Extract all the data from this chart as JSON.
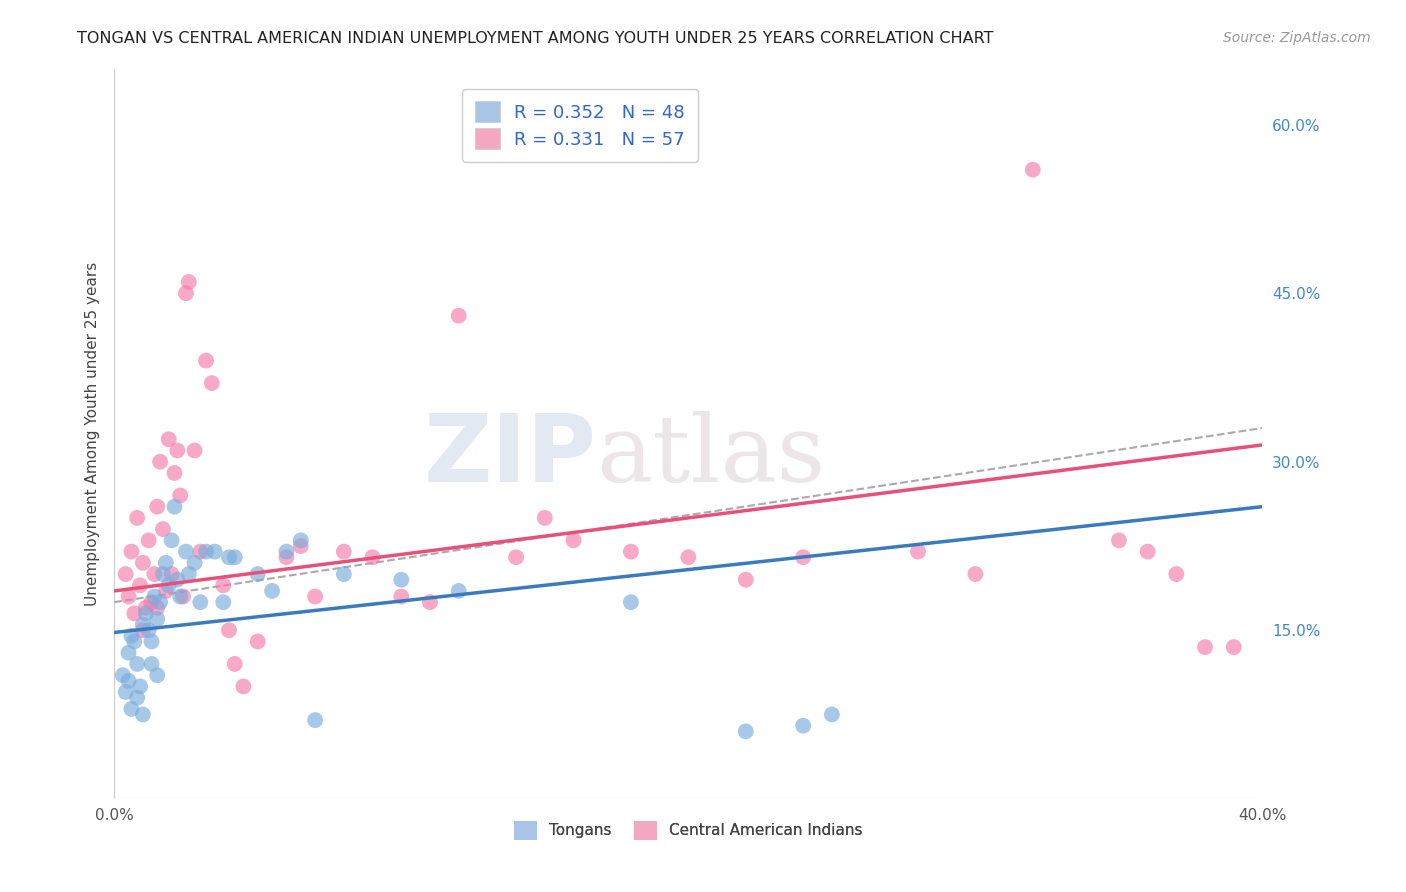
{
  "title": "TONGAN VS CENTRAL AMERICAN INDIAN UNEMPLOYMENT AMONG YOUTH UNDER 25 YEARS CORRELATION CHART",
  "source": "Source: ZipAtlas.com",
  "ylabel": "Unemployment Among Youth under 25 years",
  "xlim": [
    0.0,
    0.4
  ],
  "ylim": [
    0.0,
    0.65
  ],
  "xticks": [
    0.0,
    0.05,
    0.1,
    0.15,
    0.2,
    0.25,
    0.3,
    0.35,
    0.4
  ],
  "xticklabels": [
    "0.0%",
    "",
    "",
    "",
    "",
    "",
    "",
    "",
    "40.0%"
  ],
  "ytick_right": [
    0.0,
    0.15,
    0.3,
    0.45,
    0.6
  ],
  "yticklabels_right": [
    "",
    "15.0%",
    "30.0%",
    "45.0%",
    "60.0%"
  ],
  "legend_entries": [
    {
      "label": "R = 0.352   N = 48",
      "color": "#aac4e8"
    },
    {
      "label": "R = 0.331   N = 57",
      "color": "#f4a7c0"
    }
  ],
  "legend2_entries": [
    {
      "label": "Tongans",
      "color": "#aac4e8"
    },
    {
      "label": "Central American Indians",
      "color": "#f4a7c0"
    }
  ],
  "tongan_color": "#7aabdd",
  "caindian_color": "#f47caa",
  "tongan_line_color": "#3a7abf",
  "caindian_line_color": "#e8507a",
  "watermark_zip": "ZIP",
  "watermark_atlas": "atlas",
  "tongan_x": [
    0.003,
    0.004,
    0.005,
    0.005,
    0.006,
    0.006,
    0.007,
    0.008,
    0.008,
    0.009,
    0.01,
    0.01,
    0.011,
    0.012,
    0.013,
    0.013,
    0.014,
    0.015,
    0.015,
    0.016,
    0.017,
    0.018,
    0.019,
    0.02,
    0.021,
    0.022,
    0.023,
    0.025,
    0.026,
    0.028,
    0.03,
    0.032,
    0.035,
    0.038,
    0.04,
    0.042,
    0.05,
    0.055,
    0.06,
    0.065,
    0.07,
    0.08,
    0.1,
    0.12,
    0.18,
    0.22,
    0.24,
    0.25
  ],
  "tongan_y": [
    0.11,
    0.095,
    0.13,
    0.105,
    0.08,
    0.145,
    0.14,
    0.12,
    0.09,
    0.1,
    0.155,
    0.075,
    0.165,
    0.15,
    0.12,
    0.14,
    0.18,
    0.16,
    0.11,
    0.175,
    0.2,
    0.21,
    0.19,
    0.23,
    0.26,
    0.195,
    0.18,
    0.22,
    0.2,
    0.21,
    0.175,
    0.22,
    0.22,
    0.175,
    0.215,
    0.215,
    0.2,
    0.185,
    0.22,
    0.23,
    0.07,
    0.2,
    0.195,
    0.185,
    0.175,
    0.06,
    0.065,
    0.075
  ],
  "caindian_x": [
    0.004,
    0.005,
    0.006,
    0.007,
    0.008,
    0.009,
    0.01,
    0.01,
    0.011,
    0.012,
    0.013,
    0.014,
    0.015,
    0.015,
    0.016,
    0.017,
    0.018,
    0.019,
    0.02,
    0.021,
    0.022,
    0.023,
    0.024,
    0.025,
    0.026,
    0.028,
    0.03,
    0.032,
    0.034,
    0.038,
    0.04,
    0.042,
    0.045,
    0.05,
    0.06,
    0.065,
    0.07,
    0.08,
    0.09,
    0.1,
    0.11,
    0.12,
    0.14,
    0.15,
    0.16,
    0.18,
    0.2,
    0.22,
    0.24,
    0.28,
    0.3,
    0.32,
    0.35,
    0.36,
    0.37,
    0.38,
    0.39
  ],
  "caindian_y": [
    0.2,
    0.18,
    0.22,
    0.165,
    0.25,
    0.19,
    0.21,
    0.15,
    0.17,
    0.23,
    0.175,
    0.2,
    0.26,
    0.17,
    0.3,
    0.24,
    0.185,
    0.32,
    0.2,
    0.29,
    0.31,
    0.27,
    0.18,
    0.45,
    0.46,
    0.31,
    0.22,
    0.39,
    0.37,
    0.19,
    0.15,
    0.12,
    0.1,
    0.14,
    0.215,
    0.225,
    0.18,
    0.22,
    0.215,
    0.18,
    0.175,
    0.43,
    0.215,
    0.25,
    0.23,
    0.22,
    0.215,
    0.195,
    0.215,
    0.22,
    0.2,
    0.56,
    0.23,
    0.22,
    0.2,
    0.135,
    0.135
  ],
  "tongan_line_x0": 0.0,
  "tongan_line_y0": 0.148,
  "tongan_line_x1": 0.4,
  "tongan_line_y1": 0.26,
  "caindian_line_x0": 0.0,
  "caindian_line_y0": 0.185,
  "caindian_line_x1": 0.4,
  "caindian_line_y1": 0.315,
  "dashed_line_x0": 0.0,
  "dashed_line_y0": 0.175,
  "dashed_line_x1": 0.4,
  "dashed_line_y1": 0.33
}
